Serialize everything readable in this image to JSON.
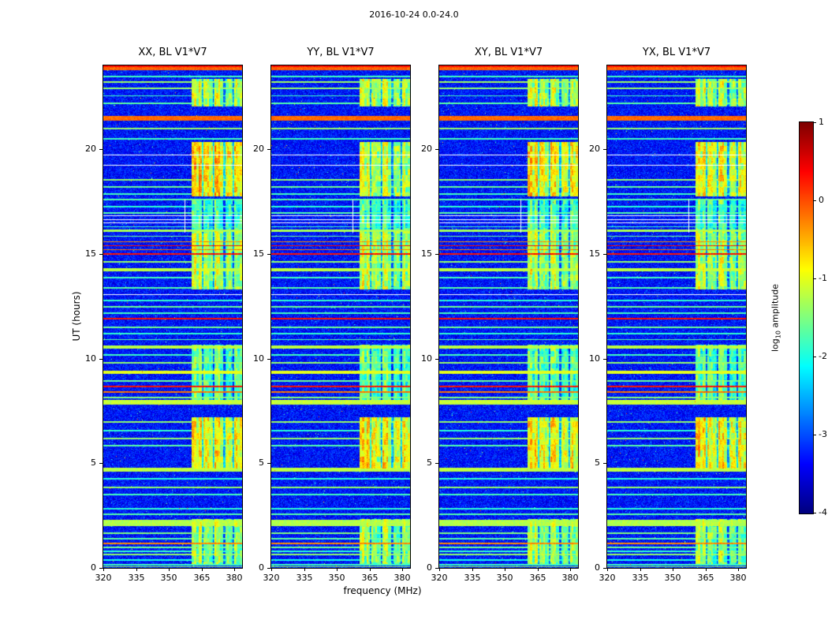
{
  "chart_data": {
    "type": "heatmap",
    "title": "2016-10-24 0.0-24.0",
    "panels": [
      {
        "label": "XX, BL V1*V7"
      },
      {
        "label": "YY, BL V1*V7"
      },
      {
        "label": "XY, BL V1*V7"
      },
      {
        "label": "YX, BL V1*V7"
      }
    ],
    "x": {
      "label": "frequency (MHz)",
      "ticks": [
        320,
        335,
        350,
        365,
        380
      ],
      "range": [
        320,
        383.5
      ]
    },
    "y": {
      "label": "UT (hours)",
      "ticks": [
        0,
        5,
        10,
        15,
        20
      ],
      "range": [
        0,
        24
      ]
    },
    "colorbar": {
      "label": "log10 amplitude",
      "ticks": [
        1,
        0,
        -1,
        -2,
        -3,
        -4
      ],
      "range": [
        -4,
        1
      ],
      "colormap": "jet"
    },
    "noise": {
      "base": -3.7,
      "spread": 0.8
    },
    "stripes_twv": [
      [
        0.05,
        0.06,
        -1.4
      ],
      [
        0.15,
        0.05,
        -1.8
      ],
      [
        0.38,
        0.05,
        -2
      ],
      [
        0.64,
        0.06,
        -1.4
      ],
      [
        0.79,
        0.05,
        -1.9
      ],
      [
        0.98,
        0.05,
        -1.6
      ],
      [
        1.17,
        0.05,
        -0.3
      ],
      [
        1.39,
        0.05,
        -1.7
      ],
      [
        1.66,
        0.06,
        -1.5
      ],
      [
        2.13,
        0.3,
        -1.25
      ],
      [
        2.56,
        0.05,
        -1.7
      ],
      [
        2.83,
        0.05,
        -1.9
      ],
      [
        3.5,
        0.05,
        -1.8
      ],
      [
        3.84,
        0.07,
        -1.4
      ],
      [
        4.26,
        0.05,
        -1.9
      ],
      [
        4.68,
        0.18,
        -1.2
      ],
      [
        5.84,
        0.05,
        -1.7
      ],
      [
        6.18,
        0.07,
        -1.4
      ],
      [
        6.55,
        0.05,
        -1.9
      ],
      [
        6.97,
        0.07,
        -1.4
      ],
      [
        7.91,
        0.25,
        -1.15
      ],
      [
        8.14,
        0.06,
        -1.5
      ],
      [
        8.4,
        0.06,
        -0.2
      ],
      [
        8.66,
        0.05,
        0.3
      ],
      [
        8.93,
        0.05,
        -1.6
      ],
      [
        9.34,
        0.18,
        -1
      ],
      [
        9.79,
        0.07,
        -1.4
      ],
      [
        10.17,
        0.05,
        -1.8
      ],
      [
        10.55,
        0.15,
        -1.2
      ],
      [
        10.92,
        0.05,
        -1.7
      ],
      [
        11.19,
        0.05,
        -1.9
      ],
      [
        11.49,
        0.05,
        -1.6
      ],
      [
        11.9,
        0.06,
        0.3
      ],
      [
        12.17,
        0.05,
        -1.8
      ],
      [
        12.47,
        0.05,
        -1.6
      ],
      [
        12.77,
        0.05,
        -1.9
      ],
      [
        13.37,
        0.05,
        -1.7
      ],
      [
        13.86,
        0.05,
        -1.8
      ],
      [
        14.25,
        0.15,
        -1.2
      ],
      [
        14.61,
        0.07,
        -1.4
      ],
      [
        14.99,
        0.06,
        0.3
      ],
      [
        15.21,
        0.05,
        -0.2
      ],
      [
        15.4,
        0.05,
        0.3
      ],
      [
        15.59,
        0.05,
        -0.3
      ],
      [
        15.85,
        0.05,
        -1.6
      ],
      [
        16.1,
        0.12,
        -1.3
      ],
      [
        16.3,
        0.05,
        -1.8
      ],
      [
        16.95,
        0.05,
        -1.7
      ],
      [
        17.25,
        0.05,
        -1.9
      ],
      [
        17.59,
        0.05,
        -1.7
      ],
      [
        17.86,
        0.05,
        -1.8
      ],
      [
        18.2,
        0.05,
        -1.6
      ],
      [
        18.54,
        0.07,
        -1.4
      ],
      [
        20.49,
        0.05,
        -1.8
      ],
      [
        20.98,
        0.07,
        -1.4
      ],
      [
        21.47,
        0.2,
        -0.15
      ],
      [
        22.19,
        0.05,
        -1.7
      ],
      [
        22.56,
        0.05,
        -1.8
      ],
      [
        22.9,
        0.07,
        -1.4
      ],
      [
        23.2,
        0.07,
        -1.35
      ],
      [
        23.47,
        0.05,
        -1.8
      ],
      [
        23.85,
        0.18,
        -0.1
      ],
      [
        23.97,
        0.06,
        0.35
      ]
    ],
    "masked_rows": [
      13.07,
      16.5,
      16.65,
      16.82,
      19.25,
      19.74
    ],
    "masked_col": {
      "f": 357,
      "t0": 16.0,
      "t1": 17.6
    },
    "band": {
      "f0": 360.5,
      "f1": 383.5,
      "gap_freqs": [
        365,
        370,
        375,
        379
      ],
      "segments_ttv": [
        [
          0.2,
          2.35,
          -1.5
        ],
        [
          4.75,
          7.2,
          -0.95
        ],
        [
          8.0,
          10.65,
          -1.75
        ],
        [
          13.3,
          16.1,
          -1.35
        ],
        [
          16.1,
          17.6,
          -1.85
        ],
        [
          17.75,
          20.35,
          -1.05
        ],
        [
          22.05,
          23.35,
          -1.3
        ]
      ],
      "panel_adjust": [
        {
          "panel": 0,
          "segment": 5,
          "dv": 0.3
        },
        {
          "panel": 2,
          "segment": 5,
          "dv": 0.15
        },
        {
          "panel": 1,
          "segment": 5,
          "dv": -0.2
        }
      ]
    }
  },
  "colorbar_label": {
    "prefix": "log",
    "sub": "10",
    "suffix": " amplitude"
  }
}
